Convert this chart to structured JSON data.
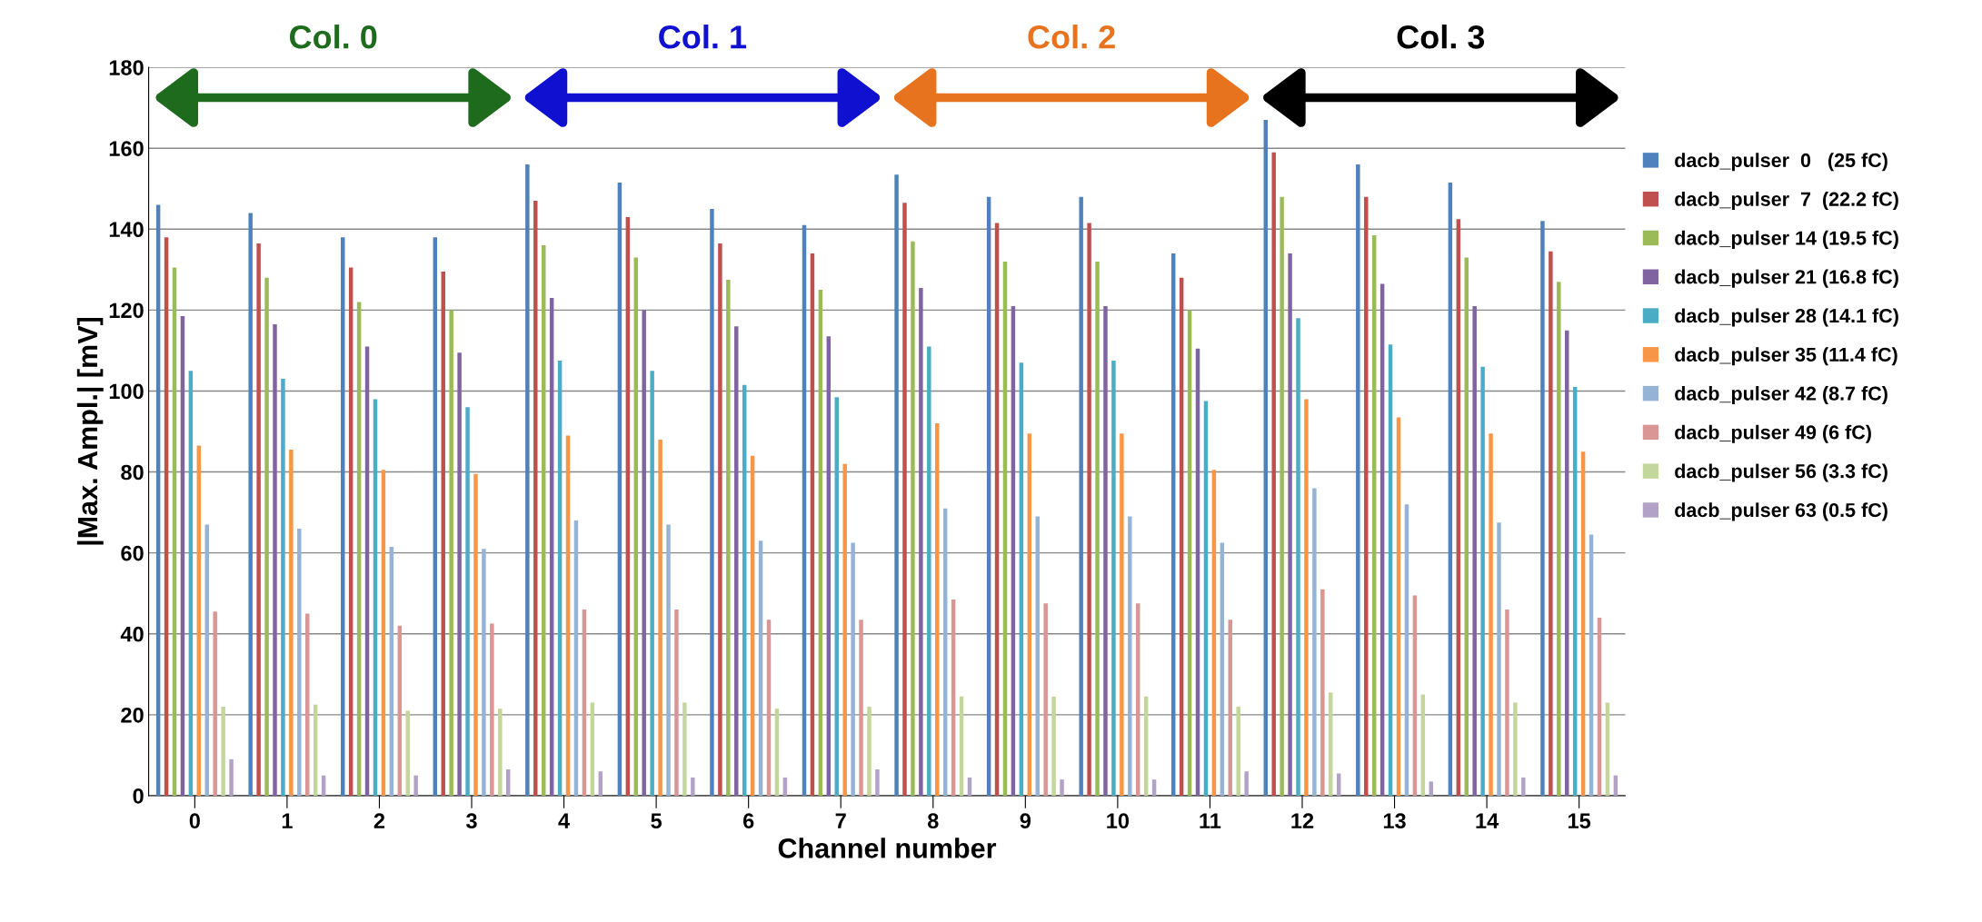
{
  "chart_data": {
    "type": "bar",
    "xlabel": "Channel number",
    "ylabel": "|Max. Ampl.| [mV]",
    "categories": [
      "0",
      "1",
      "2",
      "3",
      "4",
      "5",
      "6",
      "7",
      "8",
      "9",
      "10",
      "11",
      "12",
      "13",
      "14",
      "15"
    ],
    "series": [
      {
        "name": "dacb_pulser  0   (25 fC)",
        "color": "#4f81bd",
        "values": [
          146,
          144,
          138,
          138,
          156,
          151.5,
          145,
          141,
          153.5,
          148,
          148,
          134,
          167,
          156,
          151.5,
          142
        ]
      },
      {
        "name": "dacb_pulser  7  (22.2 fC)",
        "color": "#c0504d",
        "values": [
          138,
          136.5,
          130.5,
          129.5,
          147,
          143,
          136.5,
          134,
          146.5,
          141.5,
          141.5,
          128,
          159,
          148,
          142.5,
          134.5
        ]
      },
      {
        "name": "dacb_pulser 14 (19.5 fC)",
        "color": "#9bbb59",
        "values": [
          130.5,
          128,
          122,
          120,
          136,
          133,
          127.5,
          125,
          137,
          132,
          132,
          120,
          148,
          138.5,
          133,
          127
        ]
      },
      {
        "name": "dacb_pulser 21 (16.8 fC)",
        "color": "#8064a2",
        "values": [
          118.5,
          116.5,
          111,
          109.5,
          123,
          120,
          116,
          113.5,
          125.5,
          121,
          121,
          110.5,
          134,
          126.5,
          121,
          115
        ]
      },
      {
        "name": "dacb_pulser 28 (14.1 fC)",
        "color": "#4bacc6",
        "values": [
          105,
          103,
          98,
          96,
          107.5,
          105,
          101.5,
          98.5,
          111,
          107,
          107.5,
          97.5,
          118,
          111.5,
          106,
          101
        ]
      },
      {
        "name": "dacb_pulser 35 (11.4 fC)",
        "color": "#f79646",
        "values": [
          86.5,
          85.5,
          80.5,
          79.5,
          89,
          88,
          84,
          82,
          92,
          89.5,
          89.5,
          80.5,
          98,
          93.5,
          89.5,
          85
        ]
      },
      {
        "name": "dacb_pulser 42 (8.7 fC)",
        "color": "#95b3d7",
        "values": [
          67,
          66,
          61.5,
          61,
          68,
          67,
          63,
          62.5,
          71,
          69,
          69,
          62.5,
          76,
          72,
          67.5,
          64.5
        ]
      },
      {
        "name": "dacb_pulser 49 (6 fC)",
        "color": "#d99694",
        "values": [
          45.5,
          45,
          42,
          42.5,
          46,
          46,
          43.5,
          43.5,
          48.5,
          47.5,
          47.5,
          43.5,
          51,
          49.5,
          46,
          44
        ]
      },
      {
        "name": "dacb_pulser 56 (3.3 fC)",
        "color": "#c3d69b",
        "values": [
          22,
          22.5,
          21,
          21.5,
          23,
          23,
          21.5,
          22,
          24.5,
          24.5,
          24.5,
          22,
          25.5,
          25,
          23,
          23
        ]
      },
      {
        "name": "dacb_pulser 63 (0.5 fC)",
        "color": "#b3a2c7",
        "values": [
          9,
          5,
          5,
          6.5,
          6,
          4.5,
          4.5,
          6.5,
          4.5,
          4,
          4,
          6,
          5.5,
          3.5,
          4.5,
          5
        ]
      }
    ],
    "ylim": [
      0,
      180
    ],
    "yticks": [
      0,
      20,
      40,
      60,
      80,
      100,
      120,
      140,
      160,
      180
    ],
    "grid": "y",
    "legend": "right",
    "annotations": [
      "Col. 0",
      "Col. 1",
      "Col. 2",
      "Col. 3"
    ]
  }
}
